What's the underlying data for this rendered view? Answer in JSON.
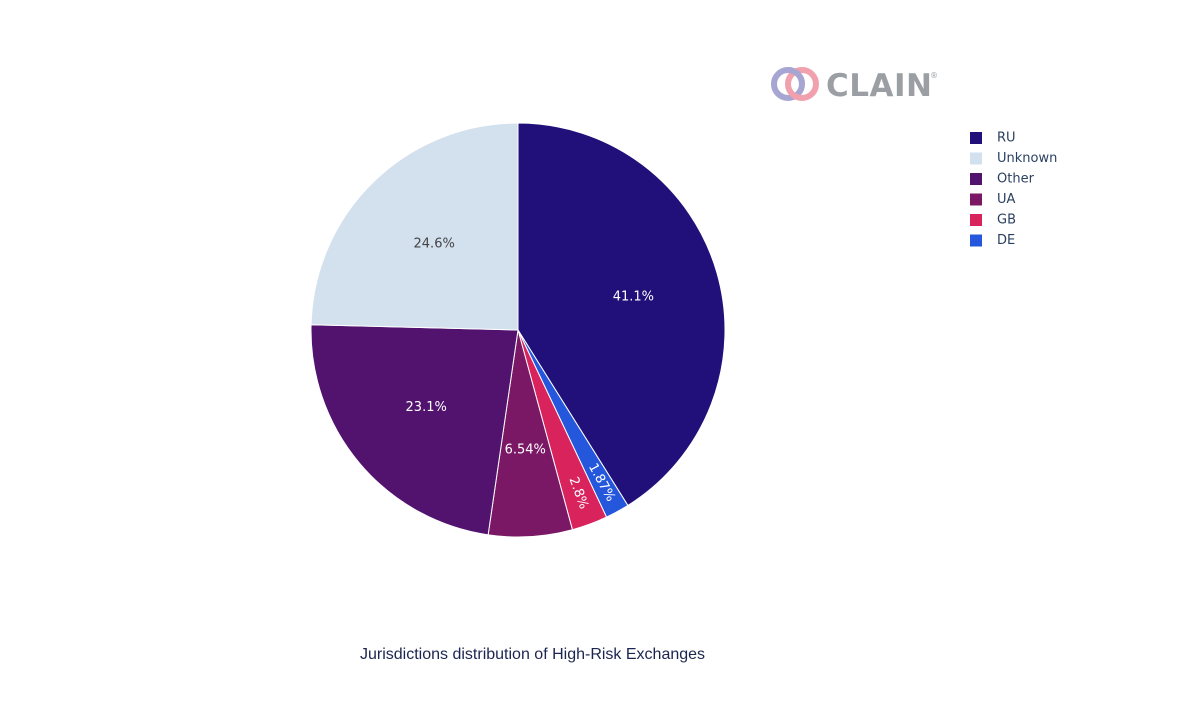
{
  "brand": {
    "name": "CLAIN",
    "mark": "®"
  },
  "chart_data": {
    "type": "pie",
    "title": "Jurisdictions distribution of High-Risk Exchanges",
    "legend_position": "top-right",
    "slices": [
      {
        "label": "RU",
        "value": 41.1,
        "text": "41.1%",
        "color": "#21107a",
        "text_color": "#ffffff"
      },
      {
        "label": "DE",
        "value": 1.87,
        "text": "1.87%",
        "color": "#2457dc",
        "text_color": "#ffffff"
      },
      {
        "label": "GB",
        "value": 2.8,
        "text": "2.8%",
        "color": "#d9235d",
        "text_color": "#ffffff"
      },
      {
        "label": "UA",
        "value": 6.54,
        "text": "6.54%",
        "color": "#7b1865",
        "text_color": "#ffffff"
      },
      {
        "label": "Other",
        "value": 23.1,
        "text": "23.1%",
        "color": "#52136e",
        "text_color": "#ffffff"
      },
      {
        "label": "Unknown",
        "value": 24.6,
        "text": "24.6%",
        "color": "#d3e0ed",
        "text_color": "#444444"
      }
    ],
    "legend": [
      "RU",
      "Unknown",
      "Other",
      "UA",
      "GB",
      "DE"
    ]
  }
}
